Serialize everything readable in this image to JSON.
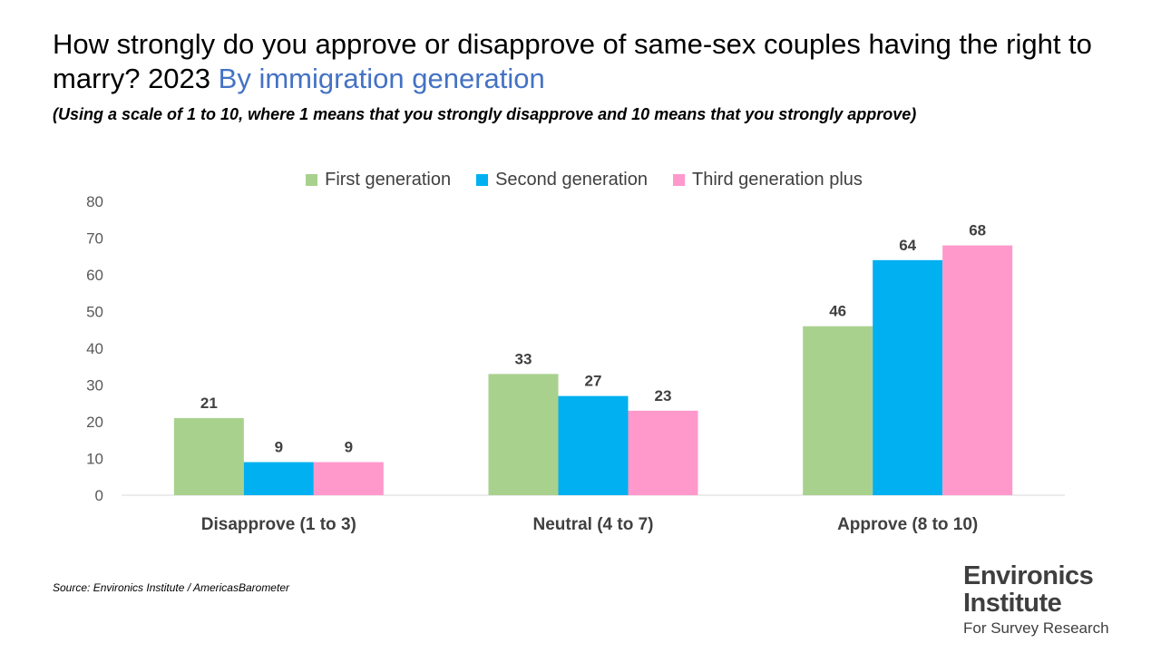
{
  "title": {
    "main": "How strongly do you approve or disapprove of same-sex couples having the right to marry?   2023",
    "accent": "By immigration generation"
  },
  "subtitle": "(Using a scale of 1 to 10, where 1 means that you strongly disapprove and 10 means that you strongly approve)",
  "source": "Source: Environics Institute / AmericasBarometer",
  "logo": {
    "line1": "Environics",
    "line2": "Institute",
    "line3": "For Survey Research"
  },
  "colors": {
    "first": "#a9d18e",
    "second": "#00b0f0",
    "third": "#ff99cc",
    "accent": "#4472c4"
  },
  "chart_data": {
    "type": "bar",
    "categories": [
      "Disapprove (1 to 3)",
      "Neutral (4 to 7)",
      "Approve (8 to 10)"
    ],
    "series": [
      {
        "name": "First generation",
        "values": [
          21,
          33,
          46
        ],
        "color": "#a9d18e"
      },
      {
        "name": "Second generation",
        "values": [
          9,
          27,
          64
        ],
        "color": "#00b0f0"
      },
      {
        "name": "Third generation plus",
        "values": [
          9,
          23,
          68
        ],
        "color": "#ff99cc"
      }
    ],
    "yticks": [
      0,
      10,
      20,
      30,
      40,
      50,
      60,
      70,
      80
    ],
    "ylim": [
      0,
      80
    ],
    "legend_position": "top-center",
    "grid": false,
    "data_labels": true
  }
}
